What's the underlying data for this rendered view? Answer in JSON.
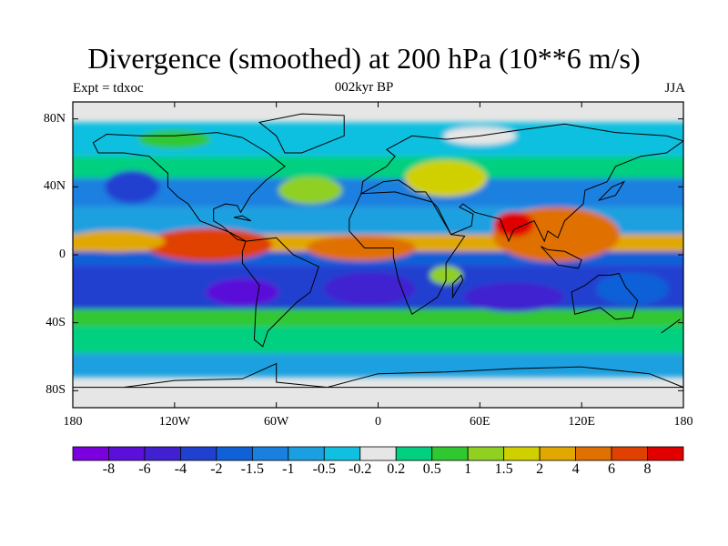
{
  "figure": {
    "title": "Divergence (smoothed) at 200 hPa (10**6 m/s)",
    "left_subtitle": "Expt = tdxoc",
    "center_subtitle": "002kyr BP",
    "right_subtitle": "JJA"
  },
  "map": {
    "projection": "cylindrical-equidistant",
    "lon_range": [
      -180,
      180
    ],
    "lat_range": [
      -90,
      90
    ],
    "lat_ticks": [
      {
        "value": 80,
        "label": "80N"
      },
      {
        "value": 40,
        "label": "40N"
      },
      {
        "value": 0,
        "label": "0"
      },
      {
        "value": -40,
        "label": "40S"
      },
      {
        "value": -80,
        "label": "80S"
      }
    ],
    "lon_ticks": [
      {
        "value": -180,
        "label": "180"
      },
      {
        "value": -120,
        "label": "120W"
      },
      {
        "value": -60,
        "label": "60W"
      },
      {
        "value": 0,
        "label": "0"
      },
      {
        "value": 60,
        "label": "60E"
      },
      {
        "value": 120,
        "label": "120E"
      },
      {
        "value": 180,
        "label": "180"
      }
    ],
    "missing_color": "#e6e6e6"
  },
  "colorbar": {
    "colors": [
      "#7a00e0",
      "#5a10d8",
      "#4020d0",
      "#2040d0",
      "#1060d8",
      "#1a80e0",
      "#1aa0e0",
      "#10c0e0",
      "#e6e6e6",
      "#00d080",
      "#30c830",
      "#90d020",
      "#d0d000",
      "#e0a800",
      "#e07000",
      "#e04000",
      "#e00000"
    ],
    "labels": [
      "-8",
      "-6",
      "-4",
      "-2",
      "-1.5",
      "-1",
      "-0.5",
      "-0.2",
      "0.2",
      "0.5",
      "1",
      "1.5",
      "2",
      "4",
      "6",
      "8"
    ]
  }
}
